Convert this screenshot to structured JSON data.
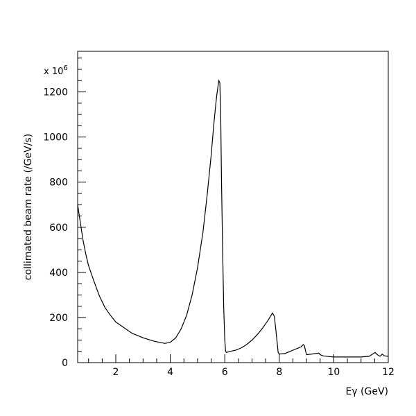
{
  "chart_data": {
    "type": "line",
    "xlabel": "Eγ (GeV)",
    "ylabel": "collimated beam rate (/GeV/s)",
    "y_multiplier_label": "x 10",
    "y_multiplier_exponent": "6",
    "xlim": [
      0.6,
      12
    ],
    "ylim": [
      0,
      1380
    ],
    "x_ticks": [
      2,
      4,
      6,
      8,
      10,
      12
    ],
    "x_tick_labels": [
      "2",
      "4",
      "6",
      "8",
      "10",
      "12"
    ],
    "y_ticks": [
      0,
      200,
      400,
      600,
      800,
      1000,
      1200
    ],
    "y_tick_labels": [
      "0",
      "200",
      "400",
      "600",
      "800",
      "1000",
      "1200"
    ],
    "grid": false,
    "series": [
      {
        "x": [
          0.6,
          0.7,
          0.8,
          0.9,
          1.0,
          1.2,
          1.4,
          1.6,
          1.8,
          2.0,
          2.3,
          2.6,
          3.0,
          3.4,
          3.8,
          4.0,
          4.2,
          4.4,
          4.6,
          4.8,
          5.0,
          5.2,
          5.35,
          5.5,
          5.6,
          5.7,
          5.78,
          5.82,
          5.85,
          5.88,
          5.92,
          5.96,
          6.0,
          6.03,
          6.06,
          6.2,
          6.4,
          6.6,
          6.8,
          7.0,
          7.2,
          7.4,
          7.6,
          7.75,
          7.82,
          7.87,
          7.92,
          7.96,
          8.0,
          8.2,
          8.4,
          8.6,
          8.8,
          8.88,
          8.92,
          8.96,
          9.0,
          9.2,
          9.45,
          9.5,
          9.6,
          9.8,
          10.0,
          10.5,
          11.0,
          11.3,
          11.45,
          11.52,
          11.6,
          11.7,
          11.78,
          11.85,
          12.0
        ],
        "y": [
          700,
          620,
          540,
          480,
          430,
          360,
          295,
          245,
          210,
          180,
          155,
          130,
          110,
          95,
          85,
          90,
          110,
          150,
          210,
          300,
          420,
          580,
          740,
          920,
          1060,
          1180,
          1250,
          1240,
          1100,
          800,
          500,
          250,
          100,
          50,
          45,
          50,
          55,
          65,
          80,
          100,
          125,
          155,
          190,
          220,
          205,
          150,
          90,
          45,
          38,
          40,
          50,
          60,
          70,
          80,
          75,
          55,
          35,
          38,
          42,
          35,
          30,
          27,
          25,
          25,
          25,
          28,
          40,
          45,
          35,
          28,
          38,
          30,
          28
        ]
      }
    ]
  }
}
